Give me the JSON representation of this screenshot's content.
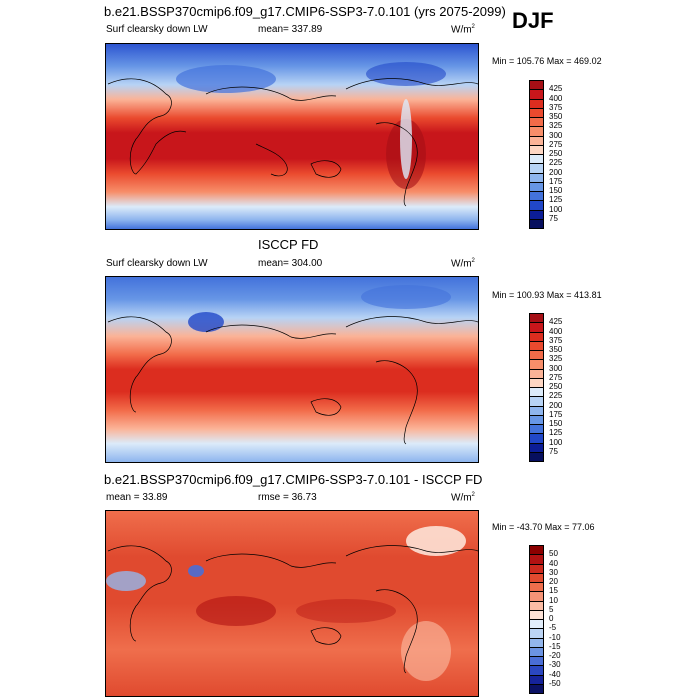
{
  "season": "DJF",
  "units_base": "W/m",
  "units_exp": "2",
  "panels": [
    {
      "title": "b.e21.BSSP370cmip6.f09_g17.CMIP6-SSP3-7.0.101 (yrs 2075-2099)",
      "left_label": "Surf clearsky down LW",
      "center_label": "mean= 337.89",
      "minmax": "Min = 105.76 Max = 469.02",
      "levels": [
        "425",
        "400",
        "375",
        "350",
        "325",
        "300",
        "275",
        "250",
        "225",
        "200",
        "175",
        "150",
        "125",
        "100",
        "75"
      ],
      "colors": [
        "#a50f15",
        "#c8161b",
        "#dc2d1f",
        "#ea4a2e",
        "#f26b49",
        "#f78e6a",
        "#fbb397",
        "#fdd6c3",
        "#dcebfa",
        "#b7d3f5",
        "#8eb5ee",
        "#6796e6",
        "#4372db",
        "#2147c8",
        "#0c1d96",
        "#070f5e"
      ]
    },
    {
      "title": "ISCCP FD",
      "left_label": "Surf clearsky down LW",
      "center_label": "mean= 304.00",
      "minmax": "Min = 100.93 Max = 413.81",
      "levels": [
        "425",
        "400",
        "375",
        "350",
        "325",
        "300",
        "275",
        "250",
        "225",
        "200",
        "175",
        "150",
        "125",
        "100",
        "75"
      ],
      "colors": [
        "#a50f15",
        "#c8161b",
        "#dc2d1f",
        "#ea4a2e",
        "#f26b49",
        "#f78e6a",
        "#fbb397",
        "#fdd6c3",
        "#dcebfa",
        "#b7d3f5",
        "#8eb5ee",
        "#6796e6",
        "#4372db",
        "#2147c8",
        "#0c1d96",
        "#070f5e"
      ]
    },
    {
      "title": "b.e21.BSSP370cmip6.f09_g17.CMIP6-SSP3-7.0.101 - ISCCP FD",
      "left_label": "mean =  33.89",
      "center_label": "rmse =  36.73",
      "minmax": "Min = -43.70 Max =  77.06",
      "levels": [
        "50",
        "40",
        "30",
        "20",
        "15",
        "10",
        "5",
        "0",
        "-5",
        "-10",
        "-15",
        "-20",
        "-30",
        "-40",
        "-50"
      ],
      "colors": [
        "#8b0000",
        "#b11212",
        "#cc2a1e",
        "#e04a2f",
        "#ef6e4c",
        "#f69476",
        "#fbbca4",
        "#fde2d6",
        "#e3eefb",
        "#bcd4f4",
        "#93b6ec",
        "#6b93e2",
        "#4a6ed6",
        "#2b47c0",
        "#16239a",
        "#0b1164"
      ]
    }
  ]
}
